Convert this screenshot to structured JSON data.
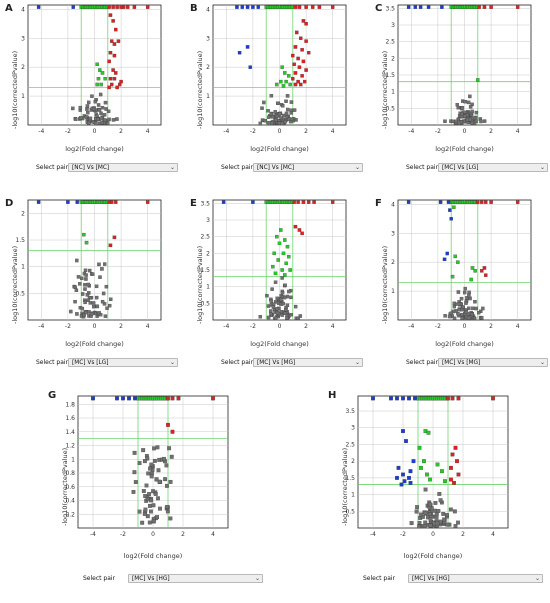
{
  "colors": {
    "up": "#e02020",
    "down": "#1a3cd8",
    "ns_sig": "#22cc22",
    "ns": "#707070",
    "threshold": "#6fd46f"
  },
  "chart_data": [
    {
      "id": "A",
      "type": "scatter",
      "xlabel": "log2(Fold change)",
      "ylabel": "-log10(correctedPvalue)",
      "select_label": "Select pair",
      "select_value": "[NC] Vs [MC]",
      "xticks": [
        -4,
        -2,
        0,
        2,
        4
      ],
      "yticks": [
        1,
        2,
        3,
        4
      ],
      "xlim": [
        -5,
        5
      ],
      "ylim": [
        0,
        4.15
      ],
      "threshold_y": 1.3,
      "threshold_x": [
        -1,
        1
      ],
      "top_row": {
        "down": [
          -4.2,
          -1.6
        ],
        "up": [
          1.1,
          1.4,
          1.7,
          2.0,
          2.2,
          2.5,
          3.0,
          4.0
        ],
        "green": true
      },
      "points": {
        "up": [
          [
            1.2,
            3.8
          ],
          [
            1.4,
            3.6
          ],
          [
            1.6,
            3.3
          ],
          [
            1.3,
            2.9
          ],
          [
            1.5,
            2.8
          ],
          [
            1.8,
            2.9
          ],
          [
            1.2,
            2.5
          ],
          [
            1.5,
            2.4
          ],
          [
            1.1,
            2.2
          ],
          [
            1.4,
            1.9
          ],
          [
            1.6,
            1.8
          ],
          [
            1.2,
            1.6
          ],
          [
            1.5,
            1.6
          ],
          [
            2.0,
            1.5
          ],
          [
            1.3,
            1.4
          ],
          [
            1.9,
            1.4
          ],
          [
            1.1,
            1.3
          ],
          [
            1.7,
            1.3
          ]
        ],
        "green": [
          [
            0.2,
            2.1
          ],
          [
            0.4,
            1.9
          ],
          [
            0.6,
            1.8
          ],
          [
            0.3,
            1.6
          ],
          [
            0.8,
            1.6
          ],
          [
            0.5,
            1.4
          ],
          [
            0.2,
            1.4
          ]
        ],
        "grey": "cluster"
      }
    },
    {
      "id": "B",
      "type": "scatter",
      "xlabel": "log2(Fold change)",
      "ylabel": "-log10(correctedPvalue)",
      "select_label": "Select pair",
      "select_value": "[NC] Vs [MC]",
      "xticks": [
        -4,
        -2,
        0,
        2,
        4
      ],
      "yticks": [
        1,
        2,
        3,
        4
      ],
      "xlim": [
        -5,
        5
      ],
      "ylim": [
        0,
        4.15
      ],
      "threshold_y": 1.3,
      "threshold_x": [
        -1,
        1
      ],
      "top_row": {
        "down": [
          -3.2,
          -2.8,
          -2.4,
          -2.0,
          -1.6
        ],
        "up": [
          1.2,
          1.5,
          2.0,
          2.5,
          3.0,
          4.0
        ],
        "green": true
      },
      "points": {
        "down": [
          [
            -3.0,
            2.5
          ],
          [
            -2.4,
            2.7
          ],
          [
            -2.2,
            2.0
          ]
        ],
        "up": [
          [
            1.8,
            3.6
          ],
          [
            2.0,
            3.5
          ],
          [
            1.3,
            3.2
          ],
          [
            1.6,
            3.0
          ],
          [
            2.0,
            2.9
          ],
          [
            1.2,
            2.7
          ],
          [
            1.7,
            2.6
          ],
          [
            2.2,
            2.5
          ],
          [
            1.0,
            2.4
          ],
          [
            1.4,
            2.3
          ],
          [
            1.8,
            2.2
          ],
          [
            1.1,
            2.1
          ],
          [
            1.5,
            2.0
          ],
          [
            2.0,
            1.9
          ],
          [
            1.2,
            1.8
          ],
          [
            1.7,
            1.7
          ],
          [
            1.0,
            1.6
          ],
          [
            1.4,
            1.5
          ],
          [
            1.9,
            1.5
          ],
          [
            1.2,
            1.4
          ],
          [
            1.6,
            1.4
          ]
        ],
        "green": [
          [
            0.2,
            2.0
          ],
          [
            0.4,
            1.8
          ],
          [
            0.7,
            1.7
          ],
          [
            0.1,
            1.5
          ],
          [
            0.5,
            1.5
          ],
          [
            -0.2,
            1.4
          ],
          [
            0.8,
            1.4
          ],
          [
            0.3,
            1.35
          ]
        ],
        "grey": "cluster"
      }
    },
    {
      "id": "C",
      "type": "scatter",
      "xlabel": "log2(Fold change)",
      "ylabel": "-log10(correctedPvalue)",
      "select_label": "Select pair",
      "select_value": "[MC] Vs [LG]",
      "xticks": [
        -4,
        -2,
        0,
        2,
        4
      ],
      "yticks": [
        0.5,
        1,
        1.5,
        2,
        2.5,
        3,
        3.5
      ],
      "xlim": [
        -5,
        5
      ],
      "ylim": [
        0,
        3.6
      ],
      "threshold_y": 1.3,
      "threshold_x": [
        -1,
        1
      ],
      "top_row": {
        "down": [
          -4.2,
          -3.7,
          -3.3,
          -2.7,
          -1.7
        ],
        "up": [
          1.1,
          1.5,
          2.0,
          4.0
        ],
        "green": true
      },
      "points": {
        "green": [
          [
            1.0,
            1.35
          ]
        ],
        "grey": "cluster_low"
      }
    },
    {
      "id": "D",
      "type": "scatter",
      "xlabel": "log2(Fold change)",
      "ylabel": "-log10(correctedPvalue)",
      "select_label": "Select pair",
      "select_value": "[MC] Vs [LG]",
      "xticks": [
        -4,
        -2,
        0,
        2,
        4
      ],
      "yticks": [
        0.5,
        1,
        1.5,
        2
      ],
      "xlim": [
        -5,
        5
      ],
      "ylim": [
        0,
        2.25
      ],
      "threshold_y": 1.3,
      "threshold_x": [
        -1,
        1
      ],
      "top_row": {
        "down": [
          -4.2,
          -2.0,
          -1.3
        ],
        "up": [
          1.1,
          1.3,
          1.6,
          4.0
        ],
        "green": true
      },
      "points": {
        "up": [
          [
            1.5,
            1.55
          ],
          [
            1.2,
            1.4
          ]
        ],
        "green": [
          [
            -0.8,
            1.6
          ],
          [
            -0.6,
            1.45
          ]
        ],
        "grey": "cluster_wide"
      }
    },
    {
      "id": "E",
      "type": "scatter",
      "xlabel": "log2(Fold change)",
      "ylabel": "-log10(correctedPvalue)",
      "select_label": "Select pair",
      "select_value": "[MC] Vs [MG]",
      "xticks": [
        -4,
        -2,
        0,
        2,
        4
      ],
      "yticks": [
        0.5,
        1,
        1.5,
        2,
        2.5,
        3,
        3.5
      ],
      "xlim": [
        -5,
        5
      ],
      "ylim": [
        0,
        3.6
      ],
      "threshold_y": 1.3,
      "threshold_x": [
        -1,
        1
      ],
      "top_row": {
        "down": [
          -4.2,
          -2.0
        ],
        "up": [
          1.1,
          1.4,
          1.8,
          2.2,
          2.6,
          4.0
        ],
        "green": true
      },
      "points": {
        "up": [
          [
            1.2,
            2.8
          ],
          [
            1.5,
            2.7
          ],
          [
            1.7,
            2.6
          ]
        ],
        "green": [
          [
            0.1,
            2.7
          ],
          [
            -0.2,
            2.5
          ],
          [
            0.4,
            2.4
          ],
          [
            0.0,
            2.3
          ],
          [
            0.6,
            2.2
          ],
          [
            -0.4,
            2.0
          ],
          [
            0.3,
            2.0
          ],
          [
            0.7,
            1.9
          ],
          [
            -0.1,
            1.8
          ],
          [
            0.5,
            1.7
          ],
          [
            -0.5,
            1.6
          ],
          [
            0.2,
            1.5
          ],
          [
            0.8,
            1.5
          ],
          [
            -0.3,
            1.4
          ],
          [
            0.4,
            1.35
          ]
        ],
        "grey": "cluster"
      }
    },
    {
      "id": "F",
      "type": "scatter",
      "xlabel": "log2(Fold change)",
      "ylabel": "-log10(correctedPvalue)",
      "select_label": "Select pair",
      "select_value": "[MC] Vs [MG]",
      "xticks": [
        -4,
        -2,
        0,
        2,
        4
      ],
      "yticks": [
        1,
        2,
        3,
        4
      ],
      "xlim": [
        -5,
        5
      ],
      "ylim": [
        0,
        4.15
      ],
      "threshold_y": 1.3,
      "threshold_x": [
        -1,
        1
      ],
      "top_row": {
        "down": [
          -4.2,
          -1.8,
          -1.2
        ],
        "up": [
          1.0,
          1.3,
          1.6,
          2.0,
          4.0
        ],
        "green": true
      },
      "points": {
        "down": [
          [
            -1.1,
            3.8
          ],
          [
            -1.0,
            3.5
          ],
          [
            -1.3,
            2.3
          ],
          [
            -1.5,
            2.1
          ]
        ],
        "up": [
          [
            1.5,
            1.8
          ],
          [
            1.3,
            1.7
          ],
          [
            1.6,
            1.55
          ]
        ],
        "green": [
          [
            -0.8,
            3.9
          ],
          [
            -0.7,
            2.2
          ],
          [
            -0.5,
            2.0
          ],
          [
            0.6,
            1.8
          ],
          [
            0.8,
            1.7
          ],
          [
            -0.9,
            1.5
          ],
          [
            0.5,
            1.4
          ]
        ],
        "grey": "cluster"
      }
    },
    {
      "id": "G",
      "type": "scatter",
      "xlabel": "log2(Fold change)",
      "ylabel": "-log10(correctedPvalue)",
      "select_label": "Select pair",
      "select_value": "[MC] Vs [HG]",
      "xticks": [
        -4,
        -2,
        0,
        2,
        4
      ],
      "yticks": [
        0.2,
        0.4,
        0.6,
        0.8,
        1,
        1.2,
        1.4,
        1.6,
        1.8
      ],
      "xlim": [
        -5,
        5
      ],
      "ylim": [
        0,
        1.92
      ],
      "threshold_y": 1.3,
      "threshold_x": [
        -1,
        1
      ],
      "top_row": {
        "down": [
          -4.0,
          -2.4,
          -2.0,
          -1.6,
          -1.2
        ],
        "up": [
          1.0,
          1.3,
          1.7,
          4.0
        ],
        "green": true
      },
      "points": {
        "up": [
          [
            1.0,
            1.5
          ],
          [
            1.3,
            1.4
          ]
        ],
        "grey": "cluster_scatter"
      }
    },
    {
      "id": "H",
      "type": "scatter",
      "xlabel": "log2(Fold change)",
      "ylabel": "-log10(correctedPvalue)",
      "select_label": "Select pair",
      "select_value": "[MC] Vs [HG]",
      "xticks": [
        -4,
        -2,
        0,
        2,
        4
      ],
      "yticks": [
        0.5,
        1,
        1.5,
        2,
        2.5,
        3,
        3.5
      ],
      "xlim": [
        -5,
        5
      ],
      "ylim": [
        0,
        3.95
      ],
      "threshold_y": 1.3,
      "threshold_x": [
        -1,
        1
      ],
      "top_row": {
        "down": [
          -4.0,
          -2.8,
          -2.4,
          -2.0,
          -1.6,
          -1.2
        ],
        "up": [
          1.0,
          1.3,
          1.7,
          4.0
        ],
        "green": true
      },
      "points": {
        "down": [
          [
            -2.0,
            2.9
          ],
          [
            -1.8,
            2.6
          ],
          [
            -2.3,
            1.8
          ],
          [
            -2.0,
            1.6
          ],
          [
            -1.5,
            1.7
          ],
          [
            -2.4,
            1.5
          ],
          [
            -1.9,
            1.4
          ],
          [
            -1.5,
            1.35
          ],
          [
            -2.1,
            1.3
          ],
          [
            -1.3,
            2.0
          ],
          [
            -1.6,
            1.5
          ]
        ],
        "up": [
          [
            1.5,
            2.4
          ],
          [
            1.3,
            2.2
          ],
          [
            1.6,
            2.0
          ],
          [
            1.2,
            1.8
          ],
          [
            1.7,
            1.6
          ],
          [
            1.2,
            1.45
          ],
          [
            1.4,
            1.35
          ]
        ],
        "green": [
          [
            -0.5,
            2.9
          ],
          [
            -0.3,
            2.85
          ],
          [
            -0.9,
            2.4
          ],
          [
            -0.6,
            2.0
          ],
          [
            -0.8,
            1.8
          ],
          [
            0.3,
            1.9
          ],
          [
            -0.4,
            1.6
          ],
          [
            0.6,
            1.7
          ],
          [
            -0.2,
            1.45
          ],
          [
            0.8,
            1.4
          ]
        ],
        "grey": "cluster"
      }
    }
  ]
}
